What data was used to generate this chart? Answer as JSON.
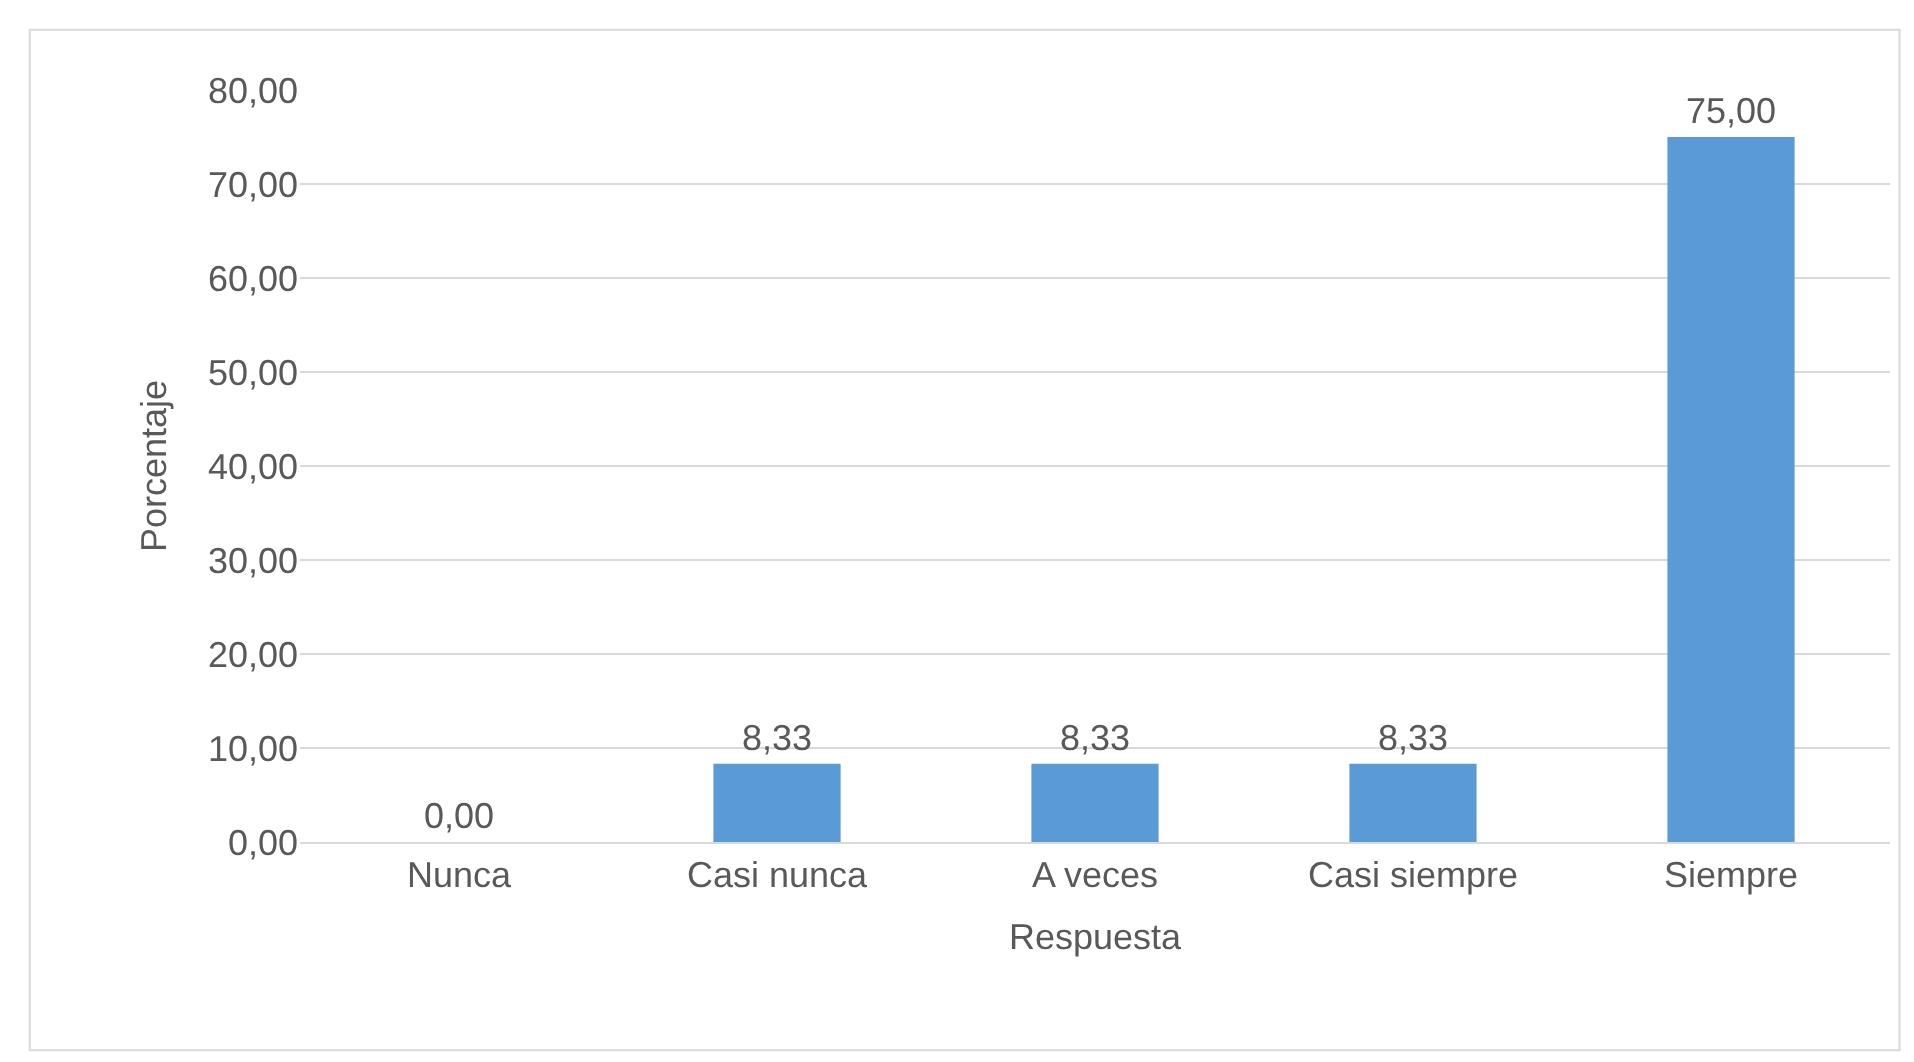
{
  "chart_data": {
    "type": "bar",
    "xlabel": "Respuesta",
    "ylabel": "Porcentaje",
    "categories": [
      "Nunca",
      "Casi nunca",
      "A veces",
      "Casi siempre",
      "Siempre"
    ],
    "values": [
      0,
      8.33,
      8.33,
      8.33,
      75
    ],
    "value_labels": [
      "0,00",
      "8,33",
      "8,33",
      "8,33",
      "75,00"
    ],
    "color": "#5b9bd5",
    "ylim": [
      0,
      80
    ],
    "yticks": [
      {
        "value": 0,
        "label": "0,00"
      },
      {
        "value": 10,
        "label": "10,00"
      },
      {
        "value": 20,
        "label": "20,00"
      },
      {
        "value": 30,
        "label": "30,00"
      },
      {
        "value": 40,
        "label": "40,00"
      },
      {
        "value": 50,
        "label": "50,00"
      },
      {
        "value": 60,
        "label": "60,00"
      },
      {
        "value": 70,
        "label": "70,00"
      },
      {
        "value": 80,
        "label": "80,00"
      }
    ],
    "grid": "y"
  }
}
